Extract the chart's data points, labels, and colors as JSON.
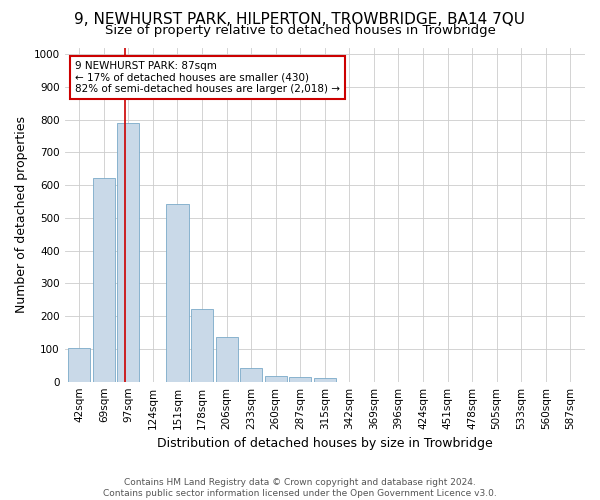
{
  "title": "9, NEWHURST PARK, HILPERTON, TROWBRIDGE, BA14 7QU",
  "subtitle": "Size of property relative to detached houses in Trowbridge",
  "xlabel": "Distribution of detached houses by size in Trowbridge",
  "ylabel": "Number of detached properties",
  "footer_line1": "Contains HM Land Registry data © Crown copyright and database right 2024.",
  "footer_line2": "Contains public sector information licensed under the Open Government Licence v3.0.",
  "bar_labels": [
    "42sqm",
    "69sqm",
    "97sqm",
    "124sqm",
    "151sqm",
    "178sqm",
    "206sqm",
    "233sqm",
    "260sqm",
    "287sqm",
    "315sqm",
    "342sqm",
    "369sqm",
    "396sqm",
    "424sqm",
    "451sqm",
    "478sqm",
    "505sqm",
    "533sqm",
    "560sqm",
    "587sqm"
  ],
  "bar_values": [
    103,
    621,
    790,
    0,
    543,
    222,
    135,
    43,
    16,
    15,
    10,
    0,
    0,
    0,
    0,
    0,
    0,
    0,
    0,
    0,
    0
  ],
  "bar_color": "#c9d9e8",
  "bar_edge_color": "#7aaac8",
  "property_line_x": 1.85,
  "property_line_color": "#cc0000",
  "annotation_text": "9 NEWHURST PARK: 87sqm\n← 17% of detached houses are smaller (430)\n82% of semi-detached houses are larger (2,018) →",
  "annotation_box_color": "#ffffff",
  "annotation_box_edge_color": "#cc0000",
  "ylim": [
    0,
    1020
  ],
  "yticks": [
    0,
    100,
    200,
    300,
    400,
    500,
    600,
    700,
    800,
    900,
    1000
  ],
  "background_color": "#ffffff",
  "grid_color": "#cccccc",
  "title_fontsize": 11,
  "subtitle_fontsize": 9.5,
  "axis_label_fontsize": 9,
  "tick_fontsize": 7.5,
  "annotation_fontsize": 7.5,
  "footer_fontsize": 6.5
}
